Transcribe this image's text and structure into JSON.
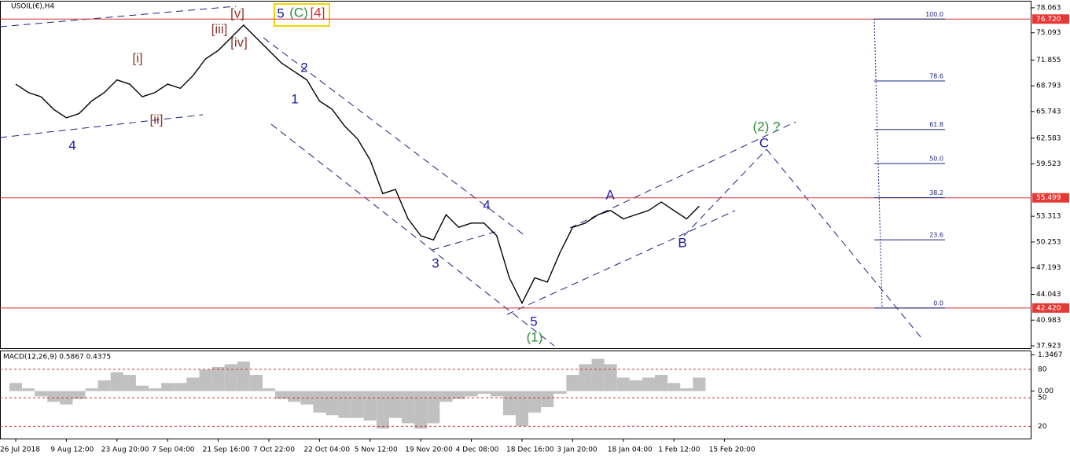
{
  "chart_data": [
    {
      "type": "line",
      "title": "USOIL(€),H4",
      "color": "#000000",
      "categories": [
        "26 Jul 2018",
        null,
        null,
        null,
        "9 Aug 12:00",
        null,
        null,
        null,
        "23 Aug 20:00",
        null,
        null,
        null,
        "7 Sep 04:00",
        null,
        null,
        null,
        "21 Sep 16:00",
        null,
        null,
        null,
        "7 Oct 22:00",
        null,
        null,
        null,
        "22 Oct 04:00",
        null,
        null,
        null,
        "5 Nov 12:00",
        null,
        null,
        null,
        "19 Nov 20:00",
        null,
        null,
        null,
        "4 Dec 08:00",
        null,
        null,
        null,
        "18 Dec 16:00",
        null,
        null,
        null,
        "3 Jan 20:00",
        null,
        null,
        null,
        "18 Jan 04:00",
        null,
        null,
        null,
        "1 Feb 12:00",
        null,
        null,
        null,
        "15 Feb 20:00"
      ],
      "values": [
        69.0,
        68.0,
        67.5,
        66.0,
        65.0,
        65.5,
        67.0,
        68.0,
        69.5,
        69.0,
        67.5,
        68.0,
        69.0,
        68.5,
        70.0,
        72.0,
        73.0,
        74.5,
        76.0,
        74.5,
        73.0,
        71.5,
        70.5,
        69.5,
        67.0,
        66.0,
        64.0,
        62.5,
        60.0,
        56.0,
        56.5,
        53.0,
        51.0,
        50.5,
        53.5,
        52.0,
        52.5,
        52.5,
        51.0,
        46.0,
        43.0,
        46.0,
        45.5,
        49.0,
        52.0,
        52.5,
        53.5,
        54.0,
        53.0,
        53.5,
        54.0,
        55.0,
        54.0,
        53.0,
        54.5,
        null,
        null
      ],
      "ylim": [
        37.65,
        78.8
      ],
      "yticks": [
        78.063,
        75.093,
        71.855,
        68.793,
        65.743,
        62.583,
        59.523,
        53.313,
        50.253,
        47.193,
        44.043,
        40.983,
        37.923
      ],
      "levels": [
        {
          "value": 76.72,
          "label": "76.720"
        },
        55.499,
        {
          "value": 42.42,
          "label": "42.420"
        }
      ],
      "fib_levels": [
        {
          "value": 100,
          "label": "100.0"
        },
        78.6,
        61.8,
        {
          "value": 50,
          "label": "50.0"
        },
        38.2,
        23.6,
        {
          "value": 0,
          "label": "0.0"
        }
      ],
      "annotations": [
        "[v]",
        "5",
        "(C)",
        "[4]",
        "[iii]",
        "[iv]",
        "[i]",
        "[ii]",
        "4",
        "2",
        "1",
        "4",
        "3",
        "A",
        "(2) ?",
        "C",
        "B",
        "5",
        "(1)"
      ]
    },
    {
      "type": "bar",
      "title": "MACD(12,26,9) 0.5867 0.4375",
      "color": "#c0c0c0",
      "categories": [
        null,
        null,
        null,
        null,
        null,
        null,
        null,
        null,
        null,
        null,
        null,
        null,
        null,
        null,
        null,
        null,
        null,
        null,
        null,
        null,
        null,
        null,
        null,
        null,
        null,
        null,
        null,
        null,
        null,
        null,
        null,
        null,
        null,
        null,
        null,
        null,
        null,
        null,
        null,
        null,
        null,
        null,
        null,
        null,
        null,
        null,
        null,
        null,
        null,
        null,
        null,
        null,
        null,
        null,
        null
      ],
      "values": [
        0.3,
        0.1,
        -0.2,
        -0.4,
        -0.5,
        -0.3,
        0.1,
        0.4,
        0.7,
        0.6,
        0.2,
        0.1,
        0.3,
        0.3,
        0.5,
        0.8,
        0.9,
        1.0,
        1.1,
        0.6,
        0.1,
        -0.3,
        -0.4,
        -0.5,
        -0.8,
        -0.9,
        -1.0,
        -1.0,
        -1.1,
        -1.4,
        -1.0,
        -1.2,
        -1.4,
        -1.2,
        -0.4,
        -0.3,
        -0.2,
        -0.1,
        -0.2,
        -0.9,
        -1.3,
        -0.8,
        -0.6,
        -0.1,
        0.6,
        1.0,
        1.2,
        1.0,
        0.5,
        0.4,
        0.5,
        0.6,
        0.3,
        0.1,
        0.5
      ],
      "ylim": [
        -1.77,
        1.48
      ],
      "yticks": [
        1.3467,
        {
          "value": 0,
          "label": "0.00"
        }
      ],
      "y2lim": [
        7,
        99
      ],
      "y2ticks": [
        80,
        50,
        20
      ]
    }
  ]
}
